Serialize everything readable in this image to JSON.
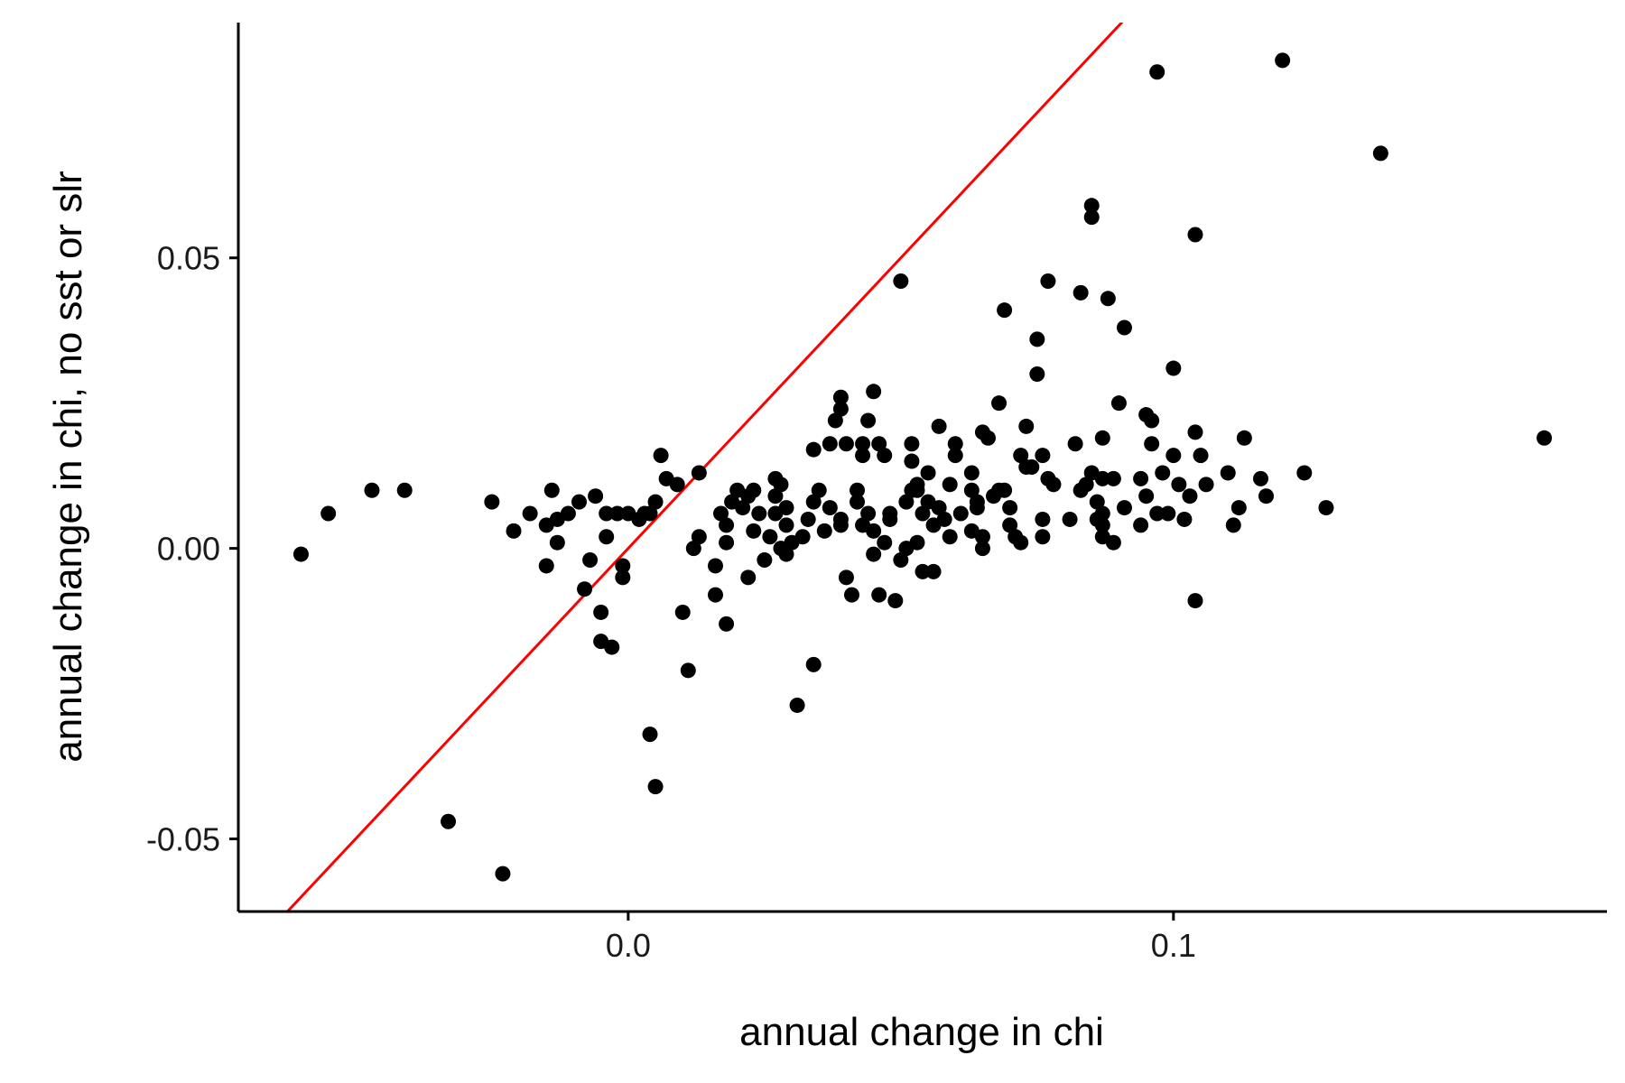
{
  "chart_data": {
    "type": "scatter",
    "xlabel": "annual change in chi",
    "ylabel": "annual change in chi, no sst or slr",
    "xlim": [
      -0.0715,
      0.1795
    ],
    "ylim": [
      -0.0625,
      0.0905
    ],
    "x_ticks": [
      0.0,
      0.1
    ],
    "x_tick_labels": [
      "0.0",
      "0.1"
    ],
    "y_ticks": [
      -0.05,
      0.0,
      0.05
    ],
    "y_tick_labels": [
      "-0.05",
      "0.00",
      "0.05"
    ],
    "grid": false,
    "reference_line": {
      "type": "identity",
      "slope": 1,
      "intercept": 0,
      "color": "#ff0000"
    },
    "point_color": "#000000",
    "points": [
      [
        -0.06,
        -0.001
      ],
      [
        -0.055,
        0.006
      ],
      [
        -0.047,
        0.01
      ],
      [
        -0.041,
        0.01
      ],
      [
        -0.033,
        -0.047
      ],
      [
        -0.025,
        0.008
      ],
      [
        -0.023,
        -0.056
      ],
      [
        -0.021,
        0.003
      ],
      [
        -0.018,
        0.006
      ],
      [
        -0.015,
        0.004
      ],
      [
        -0.015,
        -0.003
      ],
      [
        -0.014,
        0.01
      ],
      [
        -0.013,
        0.005
      ],
      [
        -0.013,
        0.001
      ],
      [
        -0.011,
        0.006
      ],
      [
        -0.009,
        0.008
      ],
      [
        -0.008,
        -0.007
      ],
      [
        -0.007,
        -0.002
      ],
      [
        -0.006,
        0.009
      ],
      [
        -0.005,
        -0.011
      ],
      [
        -0.005,
        -0.016
      ],
      [
        -0.004,
        0.002
      ],
      [
        -0.004,
        0.006
      ],
      [
        -0.003,
        -0.017
      ],
      [
        -0.002,
        0.006
      ],
      [
        -0.001,
        -0.003
      ],
      [
        -0.001,
        -0.005
      ],
      [
        0.0,
        0.006
      ],
      [
        0.002,
        0.005
      ],
      [
        0.003,
        0.006
      ],
      [
        0.004,
        -0.032
      ],
      [
        0.004,
        0.006
      ],
      [
        0.005,
        -0.041
      ],
      [
        0.005,
        0.008
      ],
      [
        0.006,
        0.016
      ],
      [
        0.007,
        0.012
      ],
      [
        0.009,
        0.011
      ],
      [
        0.01,
        -0.011
      ],
      [
        0.011,
        -0.021
      ],
      [
        0.012,
        0.0
      ],
      [
        0.013,
        0.013
      ],
      [
        0.013,
        0.002
      ],
      [
        0.016,
        -0.008
      ],
      [
        0.016,
        -0.003
      ],
      [
        0.017,
        0.006
      ],
      [
        0.018,
        -0.013
      ],
      [
        0.018,
        0.001
      ],
      [
        0.018,
        0.004
      ],
      [
        0.019,
        0.008
      ],
      [
        0.02,
        0.01
      ],
      [
        0.021,
        0.007
      ],
      [
        0.022,
        -0.005
      ],
      [
        0.022,
        0.009
      ],
      [
        0.023,
        0.003
      ],
      [
        0.023,
        0.01
      ],
      [
        0.024,
        0.006
      ],
      [
        0.025,
        -0.002
      ],
      [
        0.026,
        0.002
      ],
      [
        0.027,
        0.006
      ],
      [
        0.027,
        0.009
      ],
      [
        0.027,
        0.012
      ],
      [
        0.028,
        0.0
      ],
      [
        0.028,
        0.011
      ],
      [
        0.029,
        -0.001
      ],
      [
        0.029,
        0.004
      ],
      [
        0.029,
        0.007
      ],
      [
        0.03,
        0.001
      ],
      [
        0.031,
        -0.027
      ],
      [
        0.032,
        0.002
      ],
      [
        0.033,
        0.005
      ],
      [
        0.034,
        0.008
      ],
      [
        0.034,
        0.017
      ],
      [
        0.034,
        -0.02
      ],
      [
        0.035,
        0.01
      ],
      [
        0.036,
        0.003
      ],
      [
        0.037,
        0.007
      ],
      [
        0.037,
        0.018
      ],
      [
        0.038,
        0.022
      ],
      [
        0.039,
        0.004
      ],
      [
        0.039,
        0.005
      ],
      [
        0.039,
        0.024
      ],
      [
        0.039,
        0.026
      ],
      [
        0.04,
        -0.005
      ],
      [
        0.04,
        0.018
      ],
      [
        0.041,
        -0.008
      ],
      [
        0.042,
        0.008
      ],
      [
        0.042,
        0.01
      ],
      [
        0.043,
        0.004
      ],
      [
        0.043,
        0.016
      ],
      [
        0.043,
        0.018
      ],
      [
        0.044,
        0.006
      ],
      [
        0.044,
        0.022
      ],
      [
        0.045,
        0.003
      ],
      [
        0.045,
        0.027
      ],
      [
        0.045,
        -0.001
      ],
      [
        0.046,
        0.018
      ],
      [
        0.046,
        -0.008
      ],
      [
        0.047,
        0.001
      ],
      [
        0.047,
        0.016
      ],
      [
        0.048,
        0.005
      ],
      [
        0.048,
        0.006
      ],
      [
        0.049,
        -0.009
      ],
      [
        0.05,
        -0.002
      ],
      [
        0.05,
        0.046
      ],
      [
        0.051,
        0.0
      ],
      [
        0.051,
        0.008
      ],
      [
        0.052,
        0.01
      ],
      [
        0.052,
        0.015
      ],
      [
        0.052,
        0.018
      ],
      [
        0.053,
        0.001
      ],
      [
        0.053,
        0.01
      ],
      [
        0.053,
        0.011
      ],
      [
        0.054,
        0.006
      ],
      [
        0.054,
        -0.004
      ],
      [
        0.055,
        0.013
      ],
      [
        0.055,
        0.008
      ],
      [
        0.056,
        -0.004
      ],
      [
        0.056,
        0.004
      ],
      [
        0.057,
        0.007
      ],
      [
        0.057,
        0.021
      ],
      [
        0.058,
        0.005
      ],
      [
        0.059,
        0.002
      ],
      [
        0.059,
        0.011
      ],
      [
        0.06,
        0.016
      ],
      [
        0.06,
        0.018
      ],
      [
        0.061,
        0.006
      ],
      [
        0.063,
        0.003
      ],
      [
        0.063,
        0.01
      ],
      [
        0.063,
        0.013
      ],
      [
        0.064,
        0.007
      ],
      [
        0.064,
        0.008
      ],
      [
        0.065,
        0.0
      ],
      [
        0.065,
        0.002
      ],
      [
        0.065,
        0.02
      ],
      [
        0.066,
        0.019
      ],
      [
        0.067,
        0.009
      ],
      [
        0.068,
        0.01
      ],
      [
        0.068,
        0.025
      ],
      [
        0.069,
        0.041
      ],
      [
        0.069,
        0.01
      ],
      [
        0.07,
        0.004
      ],
      [
        0.07,
        0.007
      ],
      [
        0.071,
        0.002
      ],
      [
        0.072,
        0.001
      ],
      [
        0.072,
        0.016
      ],
      [
        0.073,
        0.014
      ],
      [
        0.073,
        0.021
      ],
      [
        0.074,
        0.014
      ],
      [
        0.075,
        0.03
      ],
      [
        0.075,
        0.036
      ],
      [
        0.076,
        0.002
      ],
      [
        0.076,
        0.005
      ],
      [
        0.076,
        0.016
      ],
      [
        0.077,
        0.012
      ],
      [
        0.077,
        0.046
      ],
      [
        0.078,
        0.011
      ],
      [
        0.081,
        0.005
      ],
      [
        0.082,
        0.018
      ],
      [
        0.083,
        0.01
      ],
      [
        0.083,
        0.044
      ],
      [
        0.084,
        0.011
      ],
      [
        0.085,
        0.013
      ],
      [
        0.085,
        0.057
      ],
      [
        0.085,
        0.059
      ],
      [
        0.086,
        0.005
      ],
      [
        0.086,
        0.008
      ],
      [
        0.087,
        0.002
      ],
      [
        0.087,
        0.004
      ],
      [
        0.087,
        0.006
      ],
      [
        0.087,
        0.019
      ],
      [
        0.087,
        0.012
      ],
      [
        0.088,
        0.043
      ],
      [
        0.089,
        0.001
      ],
      [
        0.089,
        0.012
      ],
      [
        0.09,
        0.025
      ],
      [
        0.091,
        0.007
      ],
      [
        0.091,
        0.038
      ],
      [
        0.094,
        0.004
      ],
      [
        0.094,
        0.012
      ],
      [
        0.095,
        0.023
      ],
      [
        0.095,
        0.009
      ],
      [
        0.096,
        0.018
      ],
      [
        0.096,
        0.022
      ],
      [
        0.097,
        0.006
      ],
      [
        0.097,
        0.082
      ],
      [
        0.098,
        0.013
      ],
      [
        0.099,
        0.006
      ],
      [
        0.1,
        0.031
      ],
      [
        0.1,
        0.016
      ],
      [
        0.101,
        0.011
      ],
      [
        0.102,
        0.005
      ],
      [
        0.103,
        0.009
      ],
      [
        0.104,
        0.02
      ],
      [
        0.104,
        0.054
      ],
      [
        0.104,
        -0.009
      ],
      [
        0.105,
        0.016
      ],
      [
        0.106,
        0.011
      ],
      [
        0.11,
        0.013
      ],
      [
        0.111,
        0.004
      ],
      [
        0.112,
        0.007
      ],
      [
        0.113,
        0.019
      ],
      [
        0.116,
        0.012
      ],
      [
        0.117,
        0.009
      ],
      [
        0.124,
        0.013
      ],
      [
        0.12,
        0.084
      ],
      [
        0.128,
        0.007
      ],
      [
        0.138,
        0.068
      ],
      [
        0.168,
        0.019
      ]
    ]
  }
}
